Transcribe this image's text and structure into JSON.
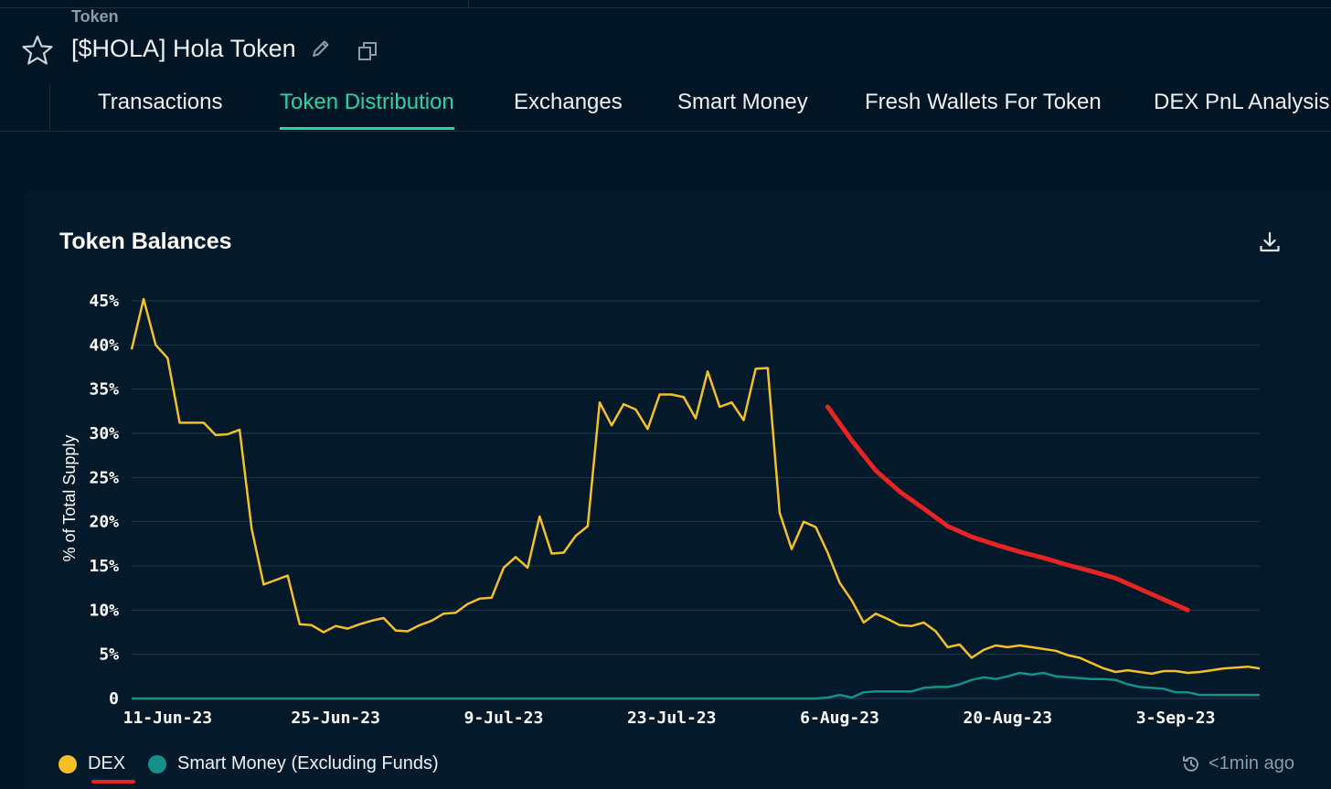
{
  "header": {
    "breadcrumb": "Token",
    "title": "[$HOLA] Hola Token"
  },
  "tabs": [
    {
      "label": "Transactions",
      "active": false
    },
    {
      "label": "Token Distribution",
      "active": true
    },
    {
      "label": "Exchanges",
      "active": false
    },
    {
      "label": "Smart Money",
      "active": false
    },
    {
      "label": "Fresh Wallets For Token",
      "active": false
    },
    {
      "label": "DEX PnL Analysis",
      "active": false
    }
  ],
  "card": {
    "title": "Token Balances",
    "updated": "<1min ago"
  },
  "colors": {
    "dex": "#f5c025",
    "smart_money": "#14918c",
    "annotation": "#e52424",
    "accent": "#29d3a8"
  },
  "icons": [
    "star-icon",
    "pencil-icon",
    "copy-icon",
    "download-icon",
    "refresh-clock-icon"
  ],
  "chart_data": {
    "type": "line",
    "title": "Token Balances",
    "xlabel": "",
    "ylabel": "% of Total Supply",
    "ylim": [
      0,
      45
    ],
    "yticks": [
      0,
      5,
      10,
      15,
      20,
      25,
      30,
      35,
      40,
      45
    ],
    "ytick_labels": [
      "0",
      "5%",
      "10%",
      "15%",
      "20%",
      "25%",
      "30%",
      "35%",
      "40%",
      "45%"
    ],
    "xlim": [
      "2023-06-08",
      "2023-09-10"
    ],
    "xtick_labels": [
      "11-Jun-23",
      "25-Jun-23",
      "9-Jul-23",
      "23-Jul-23",
      "6-Aug-23",
      "20-Aug-23",
      "3-Sep-23"
    ],
    "xtick_dates": [
      "2023-06-11",
      "2023-06-25",
      "2023-07-09",
      "2023-07-23",
      "2023-08-06",
      "2023-08-20",
      "2023-09-03"
    ],
    "grid": true,
    "legend_position": "bottom-left",
    "series": [
      {
        "name": "DEX",
        "color": "#f5c025",
        "x": [
          "2023-06-08",
          "2023-06-09",
          "2023-06-10",
          "2023-06-11",
          "2023-06-12",
          "2023-06-13",
          "2023-06-14",
          "2023-06-15",
          "2023-06-16",
          "2023-06-17",
          "2023-06-18",
          "2023-06-19",
          "2023-06-20",
          "2023-06-21",
          "2023-06-22",
          "2023-06-23",
          "2023-06-24",
          "2023-06-25",
          "2023-06-26",
          "2023-06-27",
          "2023-06-28",
          "2023-06-29",
          "2023-06-30",
          "2023-07-01",
          "2023-07-02",
          "2023-07-03",
          "2023-07-04",
          "2023-07-05",
          "2023-07-06",
          "2023-07-07",
          "2023-07-08",
          "2023-07-09",
          "2023-07-10",
          "2023-07-11",
          "2023-07-12",
          "2023-07-13",
          "2023-07-14",
          "2023-07-15",
          "2023-07-16",
          "2023-07-17",
          "2023-07-18",
          "2023-07-19",
          "2023-07-20",
          "2023-07-21",
          "2023-07-22",
          "2023-07-23",
          "2023-07-24",
          "2023-07-25",
          "2023-07-26",
          "2023-07-27",
          "2023-07-28",
          "2023-07-29",
          "2023-07-30",
          "2023-07-31",
          "2023-08-01",
          "2023-08-02",
          "2023-08-03",
          "2023-08-04",
          "2023-08-05",
          "2023-08-06",
          "2023-08-07",
          "2023-08-08",
          "2023-08-09",
          "2023-08-10",
          "2023-08-11",
          "2023-08-12",
          "2023-08-13",
          "2023-08-14",
          "2023-08-15",
          "2023-08-16",
          "2023-08-17",
          "2023-08-18",
          "2023-08-19",
          "2023-08-20",
          "2023-08-21",
          "2023-08-22",
          "2023-08-23",
          "2023-08-24",
          "2023-08-25",
          "2023-08-26",
          "2023-08-27",
          "2023-08-28",
          "2023-08-29",
          "2023-08-30",
          "2023-08-31",
          "2023-09-01",
          "2023-09-02",
          "2023-09-03",
          "2023-09-04",
          "2023-09-05",
          "2023-09-06",
          "2023-09-07",
          "2023-09-08",
          "2023-09-09",
          "2023-09-10"
        ],
        "y": [
          39.5,
          45.2,
          40.0,
          38.5,
          31.2,
          31.2,
          31.2,
          29.8,
          29.9,
          30.4,
          19.2,
          12.9,
          13.4,
          13.9,
          8.4,
          8.3,
          7.5,
          8.2,
          7.9,
          8.4,
          8.8,
          9.1,
          7.7,
          7.6,
          8.3,
          8.8,
          9.6,
          9.7,
          10.7,
          11.3,
          11.4,
          14.8,
          16.0,
          14.8,
          20.6,
          16.4,
          16.5,
          18.4,
          19.5,
          33.5,
          30.9,
          33.3,
          32.7,
          30.5,
          34.4,
          34.4,
          34.1,
          31.7,
          37.0,
          33.0,
          33.5,
          31.5,
          37.3,
          37.4,
          21.0,
          16.9,
          20.0,
          19.4,
          16.5,
          13.1,
          11.1,
          8.6,
          9.6,
          9.0,
          8.3,
          8.2,
          8.6,
          7.6,
          5.8,
          6.1,
          4.6,
          5.5,
          6.0,
          5.8,
          6.0,
          5.8,
          5.6,
          5.4,
          4.9,
          4.6,
          4.0,
          3.4,
          3.0,
          3.2,
          3.0,
          2.8,
          3.1,
          3.1,
          2.9,
          3.0,
          3.2,
          3.4,
          3.5,
          3.6,
          3.4
        ]
      },
      {
        "name": "Smart Money (Excluding Funds)",
        "color": "#14918c",
        "x": [
          "2023-06-08",
          "2023-08-04",
          "2023-08-05",
          "2023-08-06",
          "2023-08-07",
          "2023-08-08",
          "2023-08-09",
          "2023-08-10",
          "2023-08-11",
          "2023-08-12",
          "2023-08-13",
          "2023-08-14",
          "2023-08-15",
          "2023-08-16",
          "2023-08-17",
          "2023-08-18",
          "2023-08-19",
          "2023-08-20",
          "2023-08-21",
          "2023-08-22",
          "2023-08-23",
          "2023-08-24",
          "2023-08-25",
          "2023-08-26",
          "2023-08-27",
          "2023-08-28",
          "2023-08-29",
          "2023-08-30",
          "2023-08-31",
          "2023-09-01",
          "2023-09-02",
          "2023-09-03",
          "2023-09-04",
          "2023-09-05",
          "2023-09-06",
          "2023-09-07",
          "2023-09-08",
          "2023-09-09",
          "2023-09-10"
        ],
        "y": [
          0.0,
          0.0,
          0.1,
          0.4,
          0.1,
          0.7,
          0.8,
          0.8,
          0.8,
          0.8,
          1.2,
          1.3,
          1.3,
          1.6,
          2.1,
          2.4,
          2.2,
          2.5,
          2.9,
          2.7,
          2.9,
          2.5,
          2.4,
          2.3,
          2.2,
          2.2,
          2.1,
          1.6,
          1.3,
          1.2,
          1.1,
          0.7,
          0.7,
          0.4,
          0.4,
          0.4,
          0.4,
          0.4,
          0.4
        ]
      }
    ],
    "annotation": {
      "type": "freehand-line",
      "color": "#e52424",
      "x": [
        "2023-08-05",
        "2023-08-07",
        "2023-08-09",
        "2023-08-11",
        "2023-08-13",
        "2023-08-15",
        "2023-08-17",
        "2023-08-19",
        "2023-08-21",
        "2023-08-23",
        "2023-08-25",
        "2023-08-27",
        "2023-08-29",
        "2023-08-31",
        "2023-09-02",
        "2023-09-04"
      ],
      "y": [
        33.0,
        29.2,
        25.8,
        23.4,
        21.5,
        19.5,
        18.3,
        17.4,
        16.6,
        15.9,
        15.1,
        14.4,
        13.6,
        12.4,
        11.2,
        10.0
      ]
    }
  },
  "legend": [
    {
      "label": "DEX",
      "color": "#f5c025"
    },
    {
      "label": "Smart Money (Excluding Funds)",
      "color": "#14918c"
    }
  ]
}
